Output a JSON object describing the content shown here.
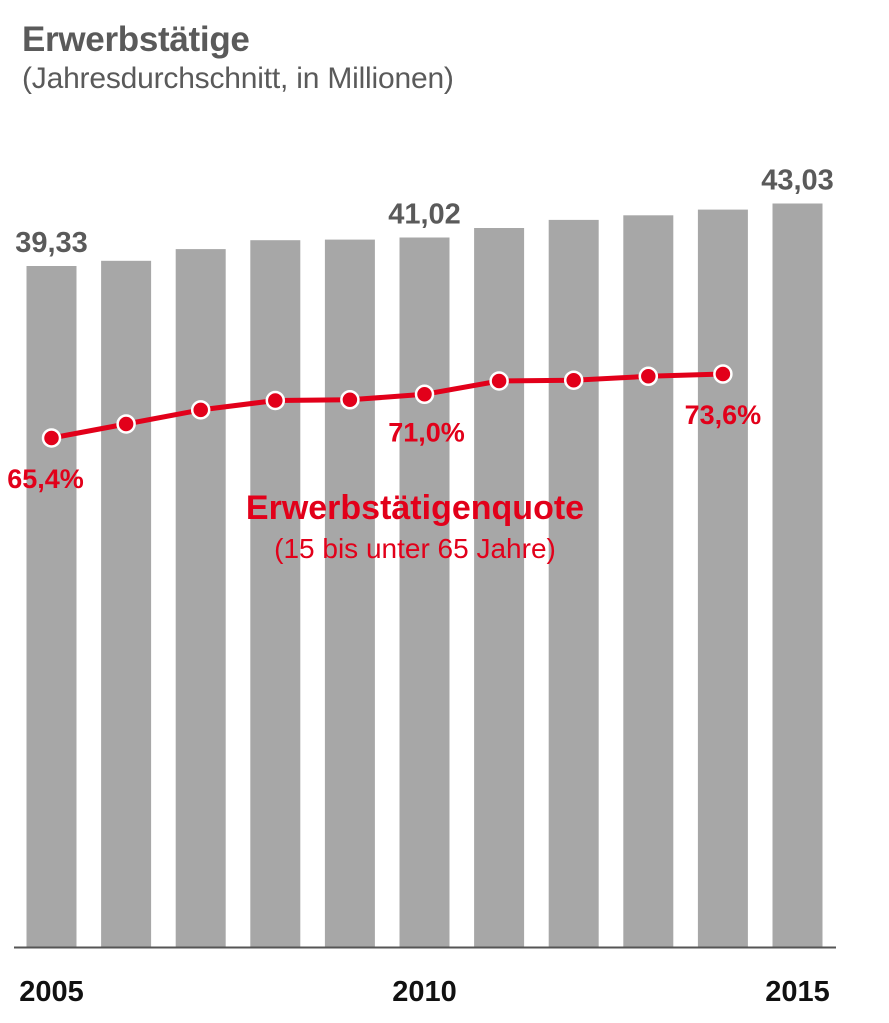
{
  "title": "Erwerbstätige",
  "subtitle": "(Jahresdurchschnitt, in Millionen)",
  "colors": {
    "bar": "#a7a7a7",
    "line": "#e2001a",
    "axis": "#555555",
    "text": "#5a5a5a"
  },
  "chart_data": {
    "type": "bar",
    "categories": [
      "2005",
      "2006",
      "2007",
      "2008",
      "2009",
      "2010",
      "2011",
      "2012",
      "2013",
      "2014",
      "2015"
    ],
    "x_tick_labels": [
      "2005",
      "",
      "",
      "",
      "",
      "2010",
      "",
      "",
      "",
      "",
      "2015"
    ],
    "series": [
      {
        "name": "",
        "type": "bar",
        "values": [
          39.33,
          39.64,
          40.33,
          40.86,
          40.89,
          41.02,
          41.58,
          42.06,
          42.33,
          42.67,
          43.03
        ],
        "data_labels": [
          "39,33",
          "",
          "",
          "",
          "",
          "41,02",
          "",
          "",
          "",
          "",
          "43,03"
        ]
      },
      {
        "name": "Erwerbstätigenquote",
        "subtitle": "(15 bis unter 65 Jahre)",
        "type": "line",
        "x": [
          "2005",
          "2006",
          "2007",
          "2008",
          "2009",
          "2010",
          "2011",
          "2012",
          "2013",
          "2014"
        ],
        "values": [
          65.4,
          67.2,
          69.0,
          70.2,
          70.3,
          71.0,
          72.7,
          72.8,
          73.3,
          73.6
        ],
        "unit": "%",
        "data_labels": [
          "65,4%",
          "",
          "",
          "",
          "",
          "71,0%",
          "",
          "",
          "",
          "73,6%"
        ]
      }
    ],
    "grid": false,
    "legend": "none"
  }
}
